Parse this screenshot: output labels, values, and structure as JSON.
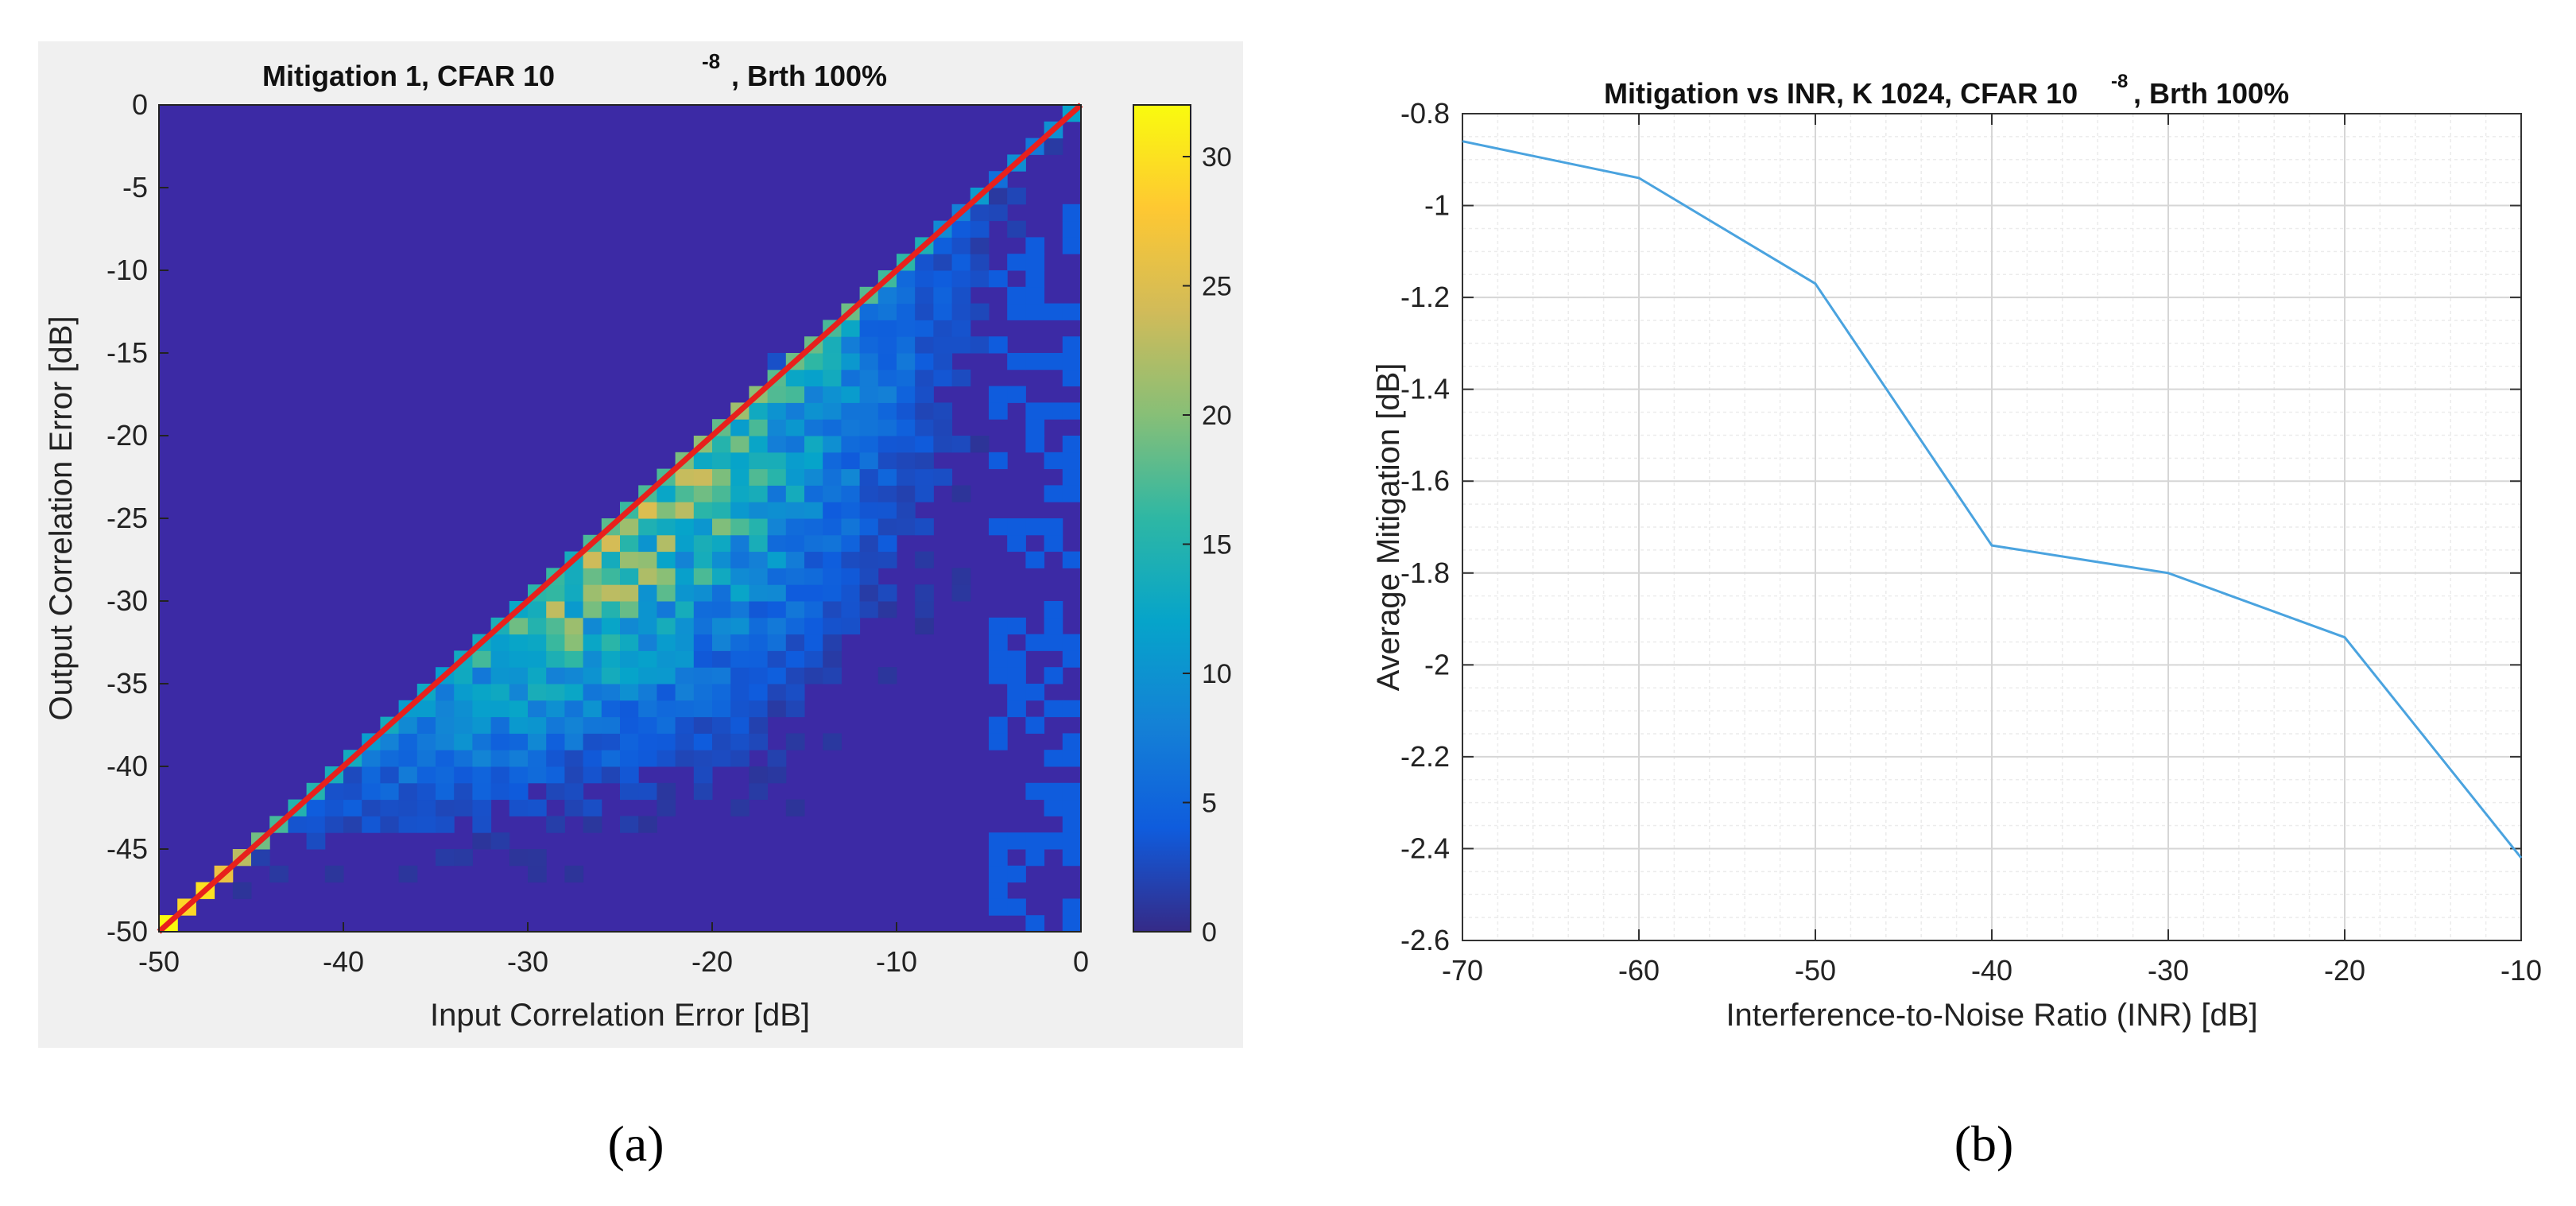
{
  "chart_data": [
    {
      "type": "heatmap",
      "title_main": "Mitigation 1, CFAR 10",
      "title_sup": "-8",
      "title_tail": ", Brth 100%",
      "xlabel": "Input Correlation Error [dB]",
      "ylabel": "Output Correlation Error [dB]",
      "xlim": [
        -50,
        0
      ],
      "ylim": [
        -50,
        0
      ],
      "x_ticks": [
        -50,
        -40,
        -30,
        -20,
        -10,
        0
      ],
      "x_tick_labels": [
        "-50",
        "-40",
        "-30",
        "-20",
        "-10",
        "0"
      ],
      "y_ticks": [
        0,
        -5,
        -10,
        -15,
        -20,
        -25,
        -30,
        -35,
        -40,
        -45,
        -50
      ],
      "y_tick_labels": [
        "0",
        "-5",
        "-10",
        "-15",
        "-20",
        "-25",
        "-30",
        "-35",
        "-40",
        "-45",
        "-50"
      ],
      "colorbar_range": [
        0,
        32
      ],
      "colorbar_ticks": [
        0,
        5,
        10,
        15,
        20,
        25,
        30
      ],
      "colorbar_tick_labels": [
        "0",
        "5",
        "10",
        "15",
        "20",
        "25",
        "30"
      ],
      "colormap": "parula",
      "background_color": "#3c2aa5",
      "figure_bg": "#f0f0f0",
      "bin_size_db": 1,
      "reference_line": {
        "from": [
          -50,
          -50
        ],
        "to": [
          0,
          0
        ],
        "color": "#e8201c"
      },
      "density_model": {
        "description": "counts concentrated along and below the diagonal y=x, peak near x=-25..-20",
        "diagonal_peak": 31,
        "band_peak": 19
      },
      "caption": "(a)"
    },
    {
      "type": "line",
      "title_main": "Mitigation vs INR, K 1024, CFAR 10",
      "title_sup": "-8",
      "title_tail": ", Brth 100%",
      "xlabel": "Interference-to-Noise Ratio (INR) [dB]",
      "ylabel": "Average Mitigation [dB]",
      "xlim": [
        -70,
        -10
      ],
      "ylim": [
        -2.6,
        -0.8
      ],
      "x_ticks": [
        -70,
        -60,
        -50,
        -40,
        -30,
        -20,
        -10
      ],
      "x_tick_labels": [
        "-70",
        "-60",
        "-50",
        "-40",
        "-30",
        "-20",
        "-10"
      ],
      "y_ticks": [
        -0.8,
        -1.0,
        -1.2,
        -1.4,
        -1.6,
        -1.8,
        -2.0,
        -2.2,
        -2.4,
        -2.6
      ],
      "y_tick_labels": [
        "-0.8",
        "-1",
        "-1.2",
        "-1.4",
        "-1.6",
        "-1.8",
        "-2",
        "-2.2",
        "-2.4",
        "-2.6"
      ],
      "grid": true,
      "minor_grid": true,
      "series": [
        {
          "name": "Average Mitigation",
          "color": "#4aa3df",
          "x": [
            -70,
            -60,
            -50,
            -40,
            -30,
            -20,
            -10
          ],
          "y": [
            -0.86,
            -0.94,
            -1.17,
            -1.74,
            -1.8,
            -1.94,
            -2.42
          ]
        }
      ],
      "caption": "(b)"
    }
  ]
}
